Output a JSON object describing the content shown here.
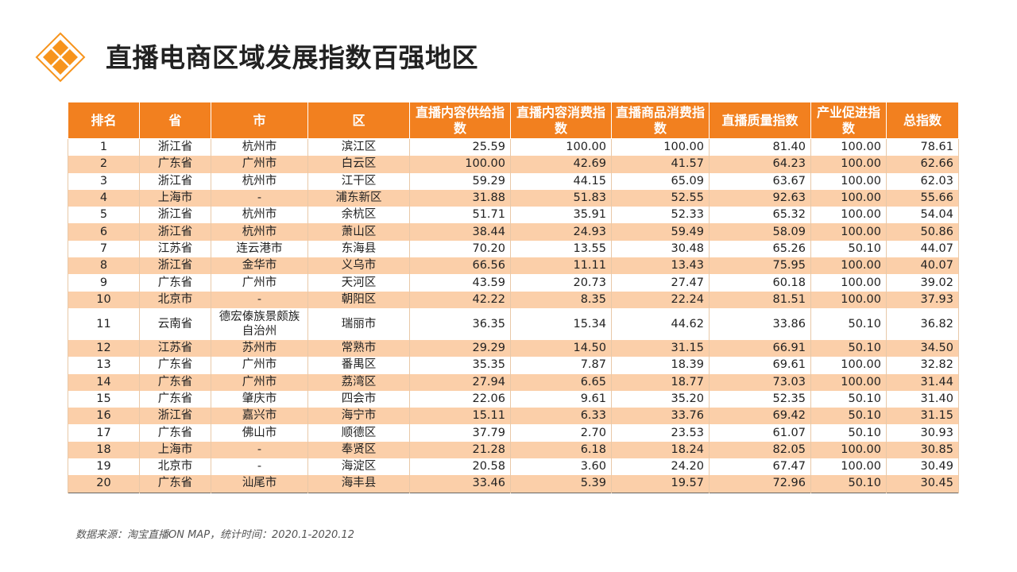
{
  "title": "直播电商区域发展指数百强地区",
  "source": "数据来源：淘宝直播ON MAP，统计时间：2020.1-2020.12",
  "colors": {
    "header": "#f2801f",
    "stripe": "#fbcfa9",
    "accent": "#f7941d"
  },
  "logo_icon": "orange-diamond-icon",
  "table": {
    "headers": [
      "排名",
      "省",
      "市",
      "区",
      "直播内容供给指数",
      "直播内容消费指数",
      "直播商品消费指数",
      "直播质量指数",
      "产业促进指数",
      "总指数"
    ],
    "rows": [
      [
        "1",
        "浙江省",
        "杭州市",
        "滨江区",
        "25.59",
        "100.00",
        "100.00",
        "81.40",
        "100.00",
        "78.61"
      ],
      [
        "2",
        "广东省",
        "广州市",
        "白云区",
        "100.00",
        "42.69",
        "41.57",
        "64.23",
        "100.00",
        "62.66"
      ],
      [
        "3",
        "浙江省",
        "杭州市",
        "江干区",
        "59.29",
        "44.15",
        "65.09",
        "63.67",
        "100.00",
        "62.03"
      ],
      [
        "4",
        "上海市",
        "-",
        "浦东新区",
        "31.88",
        "51.83",
        "52.55",
        "92.63",
        "100.00",
        "55.66"
      ],
      [
        "5",
        "浙江省",
        "杭州市",
        "余杭区",
        "51.71",
        "35.91",
        "52.33",
        "65.32",
        "100.00",
        "54.04"
      ],
      [
        "6",
        "浙江省",
        "杭州市",
        "萧山区",
        "38.44",
        "24.93",
        "59.49",
        "58.09",
        "100.00",
        "50.86"
      ],
      [
        "7",
        "江苏省",
        "连云港市",
        "东海县",
        "70.20",
        "13.55",
        "30.48",
        "65.26",
        "50.10",
        "44.07"
      ],
      [
        "8",
        "浙江省",
        "金华市",
        "义乌市",
        "66.56",
        "11.11",
        "13.43",
        "75.95",
        "100.00",
        "40.07"
      ],
      [
        "9",
        "广东省",
        "广州市",
        "天河区",
        "43.59",
        "20.73",
        "27.47",
        "60.18",
        "100.00",
        "39.02"
      ],
      [
        "10",
        "北京市",
        "-",
        "朝阳区",
        "42.22",
        "8.35",
        "22.24",
        "81.51",
        "100.00",
        "37.93"
      ],
      [
        "11",
        "云南省",
        "德宏傣族景颇族自治州",
        "瑞丽市",
        "36.35",
        "15.34",
        "44.62",
        "33.86",
        "50.10",
        "36.82"
      ],
      [
        "12",
        "江苏省",
        "苏州市",
        "常熟市",
        "29.29",
        "14.50",
        "31.15",
        "66.91",
        "50.10",
        "34.50"
      ],
      [
        "13",
        "广东省",
        "广州市",
        "番禺区",
        "35.35",
        "7.87",
        "18.39",
        "69.61",
        "100.00",
        "32.82"
      ],
      [
        "14",
        "广东省",
        "广州市",
        "荔湾区",
        "27.94",
        "6.65",
        "18.77",
        "73.03",
        "100.00",
        "31.44"
      ],
      [
        "15",
        "广东省",
        "肇庆市",
        "四会市",
        "22.06",
        "9.61",
        "35.20",
        "52.35",
        "50.10",
        "31.40"
      ],
      [
        "16",
        "浙江省",
        "嘉兴市",
        "海宁市",
        "15.11",
        "6.33",
        "33.76",
        "69.42",
        "50.10",
        "31.15"
      ],
      [
        "17",
        "广东省",
        "佛山市",
        "顺德区",
        "37.79",
        "2.70",
        "23.53",
        "61.07",
        "50.10",
        "30.93"
      ],
      [
        "18",
        "上海市",
        "-",
        "奉贤区",
        "21.28",
        "6.18",
        "18.24",
        "82.05",
        "100.00",
        "30.85"
      ],
      [
        "19",
        "北京市",
        "-",
        "海淀区",
        "20.58",
        "3.60",
        "24.20",
        "67.47",
        "100.00",
        "30.49"
      ],
      [
        "20",
        "广东省",
        "汕尾市",
        "海丰县",
        "33.46",
        "5.39",
        "19.57",
        "72.96",
        "50.10",
        "30.45"
      ]
    ]
  }
}
